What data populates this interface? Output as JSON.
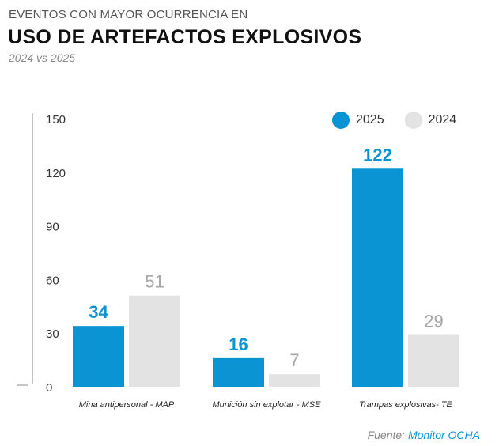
{
  "header": {
    "supertitle": "EVENTOS CON MAYOR OCURRENCIA EN",
    "title": "USO DE ARTEFACTOS EXPLOSIVOS",
    "subtitle": "2024 vs 2025"
  },
  "source": {
    "prefix": "Fuente: ",
    "link_text": "Monitor OCHA"
  },
  "colors": {
    "2025": "#0b94d3",
    "2024": "#e3e3e3",
    "label_2024": "#a6a6a6"
  },
  "chart_data": {
    "type": "bar",
    "title": "USO DE ARTEFACTOS EXPLOSIVOS",
    "categories": [
      "Mina antipersonal - MAP",
      "Munición sin explotar - MSE",
      "Trampas explosivas- TE"
    ],
    "series": [
      {
        "name": "2025",
        "values": [
          34,
          16,
          122
        ]
      },
      {
        "name": "2024",
        "values": [
          51,
          7,
          29
        ]
      }
    ],
    "yticks": [
      "0",
      "30",
      "60",
      "90",
      "120",
      "150"
    ],
    "ylim": [
      0,
      150
    ],
    "grid": false,
    "legend_position": "top-right"
  }
}
